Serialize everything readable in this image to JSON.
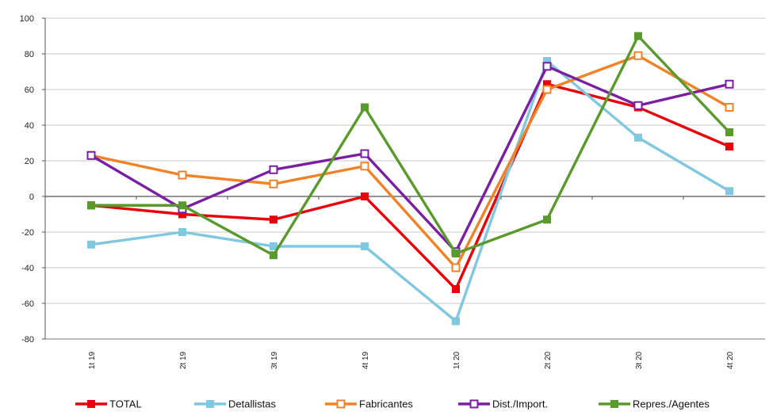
{
  "chart_data": {
    "type": "line",
    "title": "",
    "xlabel": "",
    "ylabel": "",
    "categories": [
      "1t 19",
      "2t 19",
      "3t 19",
      "4t 19",
      "1t 20",
      "2t 20",
      "3t 20",
      "4t 20"
    ],
    "ylim": [
      -80,
      100
    ],
    "yticks": [
      -80,
      -60,
      -40,
      -20,
      0,
      20,
      40,
      60,
      80,
      100
    ],
    "grid": true,
    "legend_position": "bottom",
    "series": [
      {
        "name": "TOTAL",
        "color": "#e8000b",
        "marker": "square-filled",
        "values": [
          -5,
          -10,
          -13,
          0,
          -52,
          63,
          50,
          28
        ]
      },
      {
        "name": "Detallistas",
        "color": "#7fc8e0",
        "marker": "square-filled",
        "values": [
          -27,
          -20,
          -28,
          -28,
          -70,
          76,
          33,
          3
        ]
      },
      {
        "name": "Fabricantes",
        "color": "#f08328",
        "marker": "square-hollow",
        "values": [
          23,
          12,
          7,
          17,
          -40,
          60,
          79,
          50
        ]
      },
      {
        "name": "Dist./Import.",
        "color": "#7a1fa2",
        "marker": "square-hollow",
        "values": [
          23,
          -7,
          15,
          24,
          -31,
          73,
          51,
          63
        ]
      },
      {
        "name": "Repres./Agentes",
        "color": "#5a9a2c",
        "marker": "square-filled",
        "values": [
          -5,
          -5,
          -33,
          50,
          -32,
          -13,
          90,
          36
        ]
      }
    ]
  }
}
